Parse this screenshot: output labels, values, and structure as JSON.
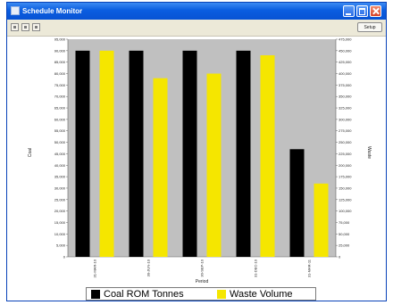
{
  "window": {
    "title": "Schedule Monitor",
    "setup_label": "Setup"
  },
  "colors": {
    "titlebar": "#0a5de0",
    "plot_bg": "#c0c0c0",
    "series1": "#000000",
    "series2": "#f5e600"
  },
  "icons": {
    "toolbar": [
      "view-icon",
      "chart-icon",
      "table-icon"
    ]
  },
  "chart_data": {
    "type": "bar",
    "title": "",
    "xlabel": "Period",
    "ylabel": "Coal",
    "y2label": "Waste",
    "categories": [
      "31-MAR-10",
      "30-JUN-10",
      "30-SEP-10",
      "31-DEC-10",
      "31-MAR-11"
    ],
    "ylim": [
      0,
      95000
    ],
    "y2lim": [
      0,
      475000
    ],
    "yticks": [
      "0",
      "5,000",
      "10,000",
      "15,000",
      "20,000",
      "25,000",
      "30,000",
      "35,000",
      "40,000",
      "45,000",
      "50,000",
      "55,000",
      "60,000",
      "65,000",
      "70,000",
      "75,000",
      "80,000",
      "85,000",
      "90,000",
      "95,000"
    ],
    "y2ticks": [
      "0",
      "25,000",
      "50,000",
      "75,000",
      "100,000",
      "125,000",
      "150,000",
      "175,000",
      "200,000",
      "225,000",
      "250,000",
      "275,000",
      "300,000",
      "325,000",
      "350,000",
      "375,000",
      "400,000",
      "425,000",
      "450,000",
      "475,000"
    ],
    "grid": false,
    "legend": "bottom",
    "series": [
      {
        "name": "Coal ROM Tonnes",
        "axis": "left",
        "color": "#000000",
        "values": [
          90000,
          90000,
          90000,
          90000,
          47000
        ]
      },
      {
        "name": "Waste Volume",
        "axis": "right",
        "color": "#f5e600",
        "values": [
          450000,
          390000,
          400000,
          440000,
          160000
        ]
      }
    ]
  }
}
